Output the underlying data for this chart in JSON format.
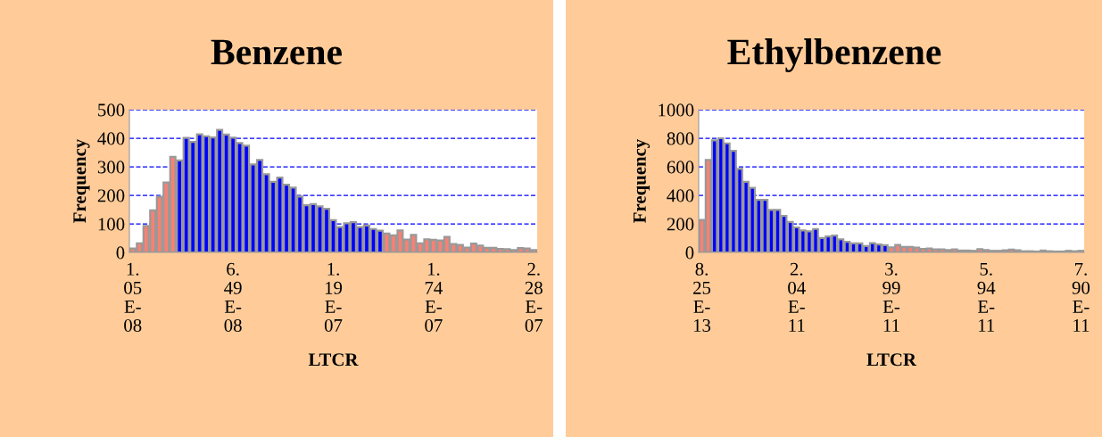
{
  "chart_data": [
    {
      "type": "bar",
      "title": "Benzene",
      "xlabel": "LTCR",
      "ylabel": "Frequency",
      "categories": [
        "1.05E-08",
        null,
        null,
        null,
        null,
        null,
        null,
        null,
        null,
        null,
        null,
        null,
        null,
        null,
        null,
        "6.49E-08",
        null,
        null,
        null,
        null,
        null,
        null,
        null,
        null,
        null,
        null,
        null,
        null,
        null,
        null,
        "1.19E-07",
        null,
        null,
        null,
        null,
        null,
        null,
        null,
        null,
        null,
        null,
        null,
        null,
        null,
        null,
        "1.74E-07",
        null,
        null,
        null,
        null,
        null,
        null,
        null,
        null,
        null,
        null,
        null,
        null,
        null,
        null,
        "2.28E-07"
      ],
      "values": [
        14,
        32,
        93,
        147,
        195,
        245,
        335,
        322,
        401,
        387,
        414,
        407,
        403,
        429,
        413,
        402,
        383,
        374,
        308,
        324,
        274,
        247,
        262,
        237,
        227,
        196,
        165,
        169,
        161,
        153,
        113,
        89,
        102,
        106,
        89,
        94,
        82,
        76,
        66,
        60,
        77,
        45,
        61,
        32,
        46,
        44,
        42,
        54,
        29,
        26,
        17,
        31,
        24,
        16,
        16,
        12,
        11,
        8,
        15,
        14,
        8
      ],
      "colors": [
        "#fa8072",
        "#fa8072",
        "#fa8072",
        "#fa8072",
        "#fa8072",
        "#fa8072",
        "#fa8072",
        "#0000ff",
        "#0000ff",
        "#0000ff",
        "#0000ff",
        "#0000ff",
        "#0000ff",
        "#0000ff",
        "#0000ff",
        "#0000ff",
        "#0000ff",
        "#0000ff",
        "#0000ff",
        "#0000ff",
        "#0000ff",
        "#0000ff",
        "#0000ff",
        "#0000ff",
        "#0000ff",
        "#0000ff",
        "#0000ff",
        "#0000ff",
        "#0000ff",
        "#0000ff",
        "#0000ff",
        "#0000ff",
        "#0000ff",
        "#0000ff",
        "#0000ff",
        "#0000ff",
        "#0000ff",
        "#0000ff",
        "#fa8072",
        "#fa8072",
        "#fa8072",
        "#fa8072",
        "#fa8072",
        "#fa8072",
        "#fa8072",
        "#fa8072",
        "#fa8072",
        "#fa8072",
        "#fa8072",
        "#fa8072",
        "#fa8072",
        "#fa8072",
        "#fa8072",
        "#fa8072",
        "#fa8072",
        "#fa8072",
        "#fa8072",
        "#fa8072",
        "#fa8072",
        "#fa8072",
        "#fa8072"
      ],
      "ylim": [
        0,
        500
      ],
      "yticks": [
        0,
        100,
        200,
        300,
        400,
        500
      ],
      "grid": "y"
    },
    {
      "type": "bar",
      "title": "Ethylbenzene",
      "xlabel": "LTCR",
      "ylabel": "Frequency",
      "categories": [
        "8.25E-13",
        null,
        null,
        null,
        null,
        null,
        null,
        null,
        null,
        null,
        null,
        null,
        null,
        null,
        null,
        "2.04E-11",
        null,
        null,
        null,
        null,
        null,
        null,
        null,
        null,
        null,
        null,
        null,
        null,
        null,
        null,
        "3.99E-11",
        null,
        null,
        null,
        null,
        null,
        null,
        null,
        null,
        null,
        null,
        null,
        null,
        null,
        null,
        "5.94E-11",
        null,
        null,
        null,
        null,
        null,
        null,
        null,
        null,
        null,
        null,
        null,
        null,
        null,
        null,
        "7.90E-11"
      ],
      "values": [
        227,
        648,
        785,
        800,
        764,
        712,
        585,
        495,
        453,
        368,
        368,
        297,
        297,
        255,
        213,
        175,
        154,
        147,
        164,
        101,
        112,
        118,
        91,
        74,
        63,
        63,
        44,
        65,
        55,
        51,
        36,
        53,
        38,
        38,
        34,
        25,
        27,
        21,
        21,
        17,
        21,
        13,
        13,
        11,
        23,
        17,
        11,
        11,
        15,
        19,
        15,
        8,
        8,
        6,
        13,
        8,
        6,
        6,
        11,
        8,
        11
      ],
      "colors": [
        "#fa8072",
        "#fa8072",
        "#0000ff",
        "#0000ff",
        "#0000ff",
        "#0000ff",
        "#0000ff",
        "#0000ff",
        "#0000ff",
        "#0000ff",
        "#0000ff",
        "#0000ff",
        "#0000ff",
        "#0000ff",
        "#0000ff",
        "#0000ff",
        "#0000ff",
        "#0000ff",
        "#0000ff",
        "#0000ff",
        "#0000ff",
        "#0000ff",
        "#0000ff",
        "#0000ff",
        "#0000ff",
        "#0000ff",
        "#0000ff",
        "#0000ff",
        "#0000ff",
        "#0000ff",
        "#fa8072",
        "#fa8072",
        "#fa8072",
        "#fa8072",
        "#fa8072",
        "#fa8072",
        "#fa8072",
        "#fa8072",
        "#fa8072",
        "#fa8072",
        "#fa8072",
        "#fa8072",
        "#fa8072",
        "#fa8072",
        "#fa8072",
        "#fa8072",
        "#fa8072",
        "#fa8072",
        "#fa8072",
        "#fa8072",
        "#fa8072",
        "#fa8072",
        "#fa8072",
        "#fa8072",
        "#fa8072",
        "#fa8072",
        "#fa8072",
        "#fa8072",
        "#fa8072",
        "#fa8072",
        "#fa8072"
      ],
      "ylim": [
        0,
        1000
      ],
      "yticks": [
        0,
        200,
        400,
        600,
        800,
        1000
      ],
      "grid": "y"
    }
  ]
}
